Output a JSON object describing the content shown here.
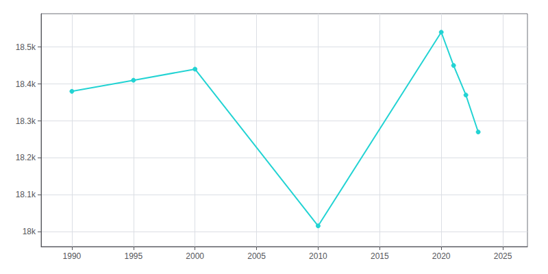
{
  "chart_data": {
    "type": "line",
    "x": [
      1990,
      1995,
      2000,
      2010,
      2020,
      2021,
      2022,
      2023
    ],
    "values": [
      18380,
      18410,
      18440,
      18016,
      18540,
      18450,
      18370,
      18270
    ],
    "color": "#22d3d3",
    "marker": "circle",
    "xlim": [
      1987.5,
      2027
    ],
    "xticks": [
      1990,
      1995,
      2000,
      2005,
      2010,
      2015,
      2020,
      2025
    ],
    "ylim": [
      17960,
      18590
    ],
    "yticks": [
      {
        "value": 18000,
        "label": "18k"
      },
      {
        "value": 18100,
        "label": "18.1k"
      },
      {
        "value": 18200,
        "label": "18.2k"
      },
      {
        "value": 18300,
        "label": "18.3k"
      },
      {
        "value": 18400,
        "label": "18.4k"
      },
      {
        "value": 18500,
        "label": "18.5k"
      }
    ],
    "grid": true
  }
}
